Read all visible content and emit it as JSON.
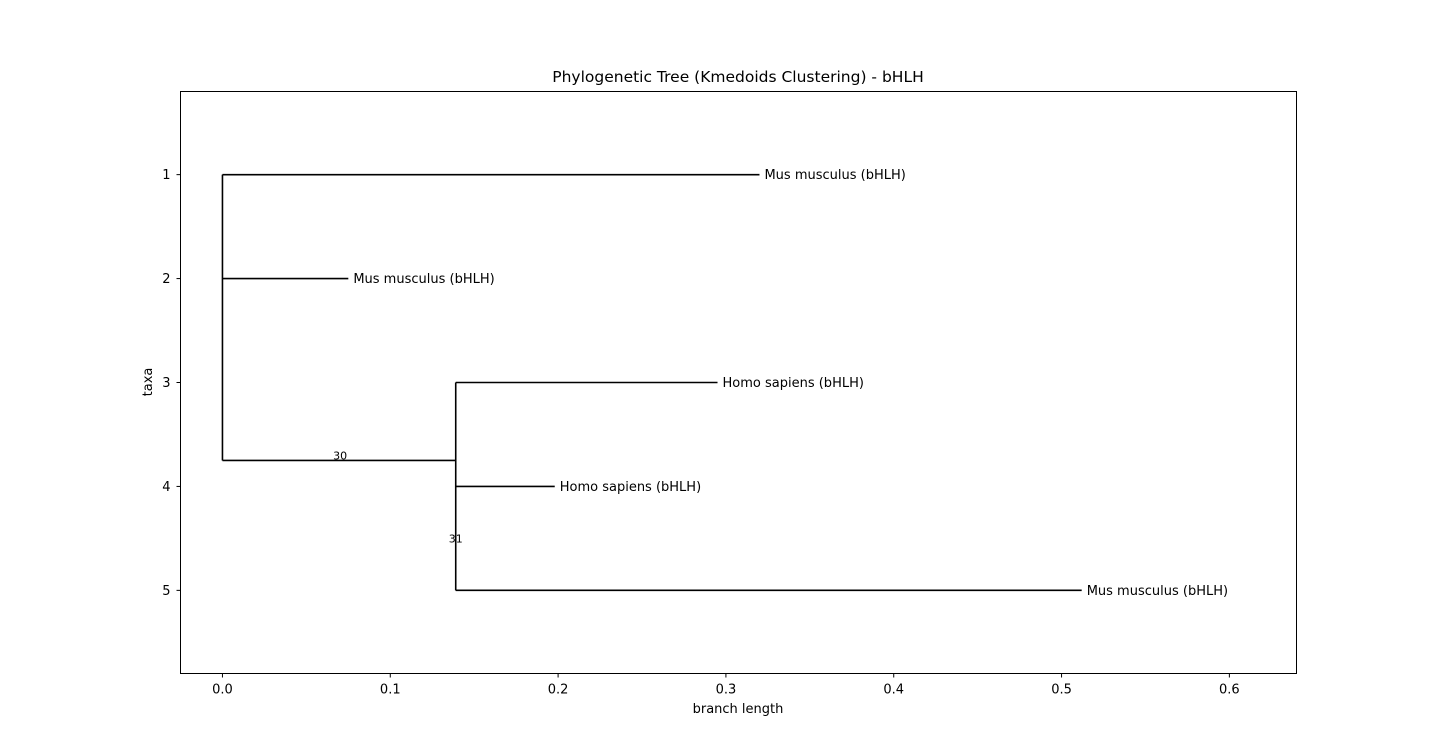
{
  "chart_data": {
    "type": "tree",
    "title": "Phylogenetic Tree (Kmedoids Clustering) - bHLH",
    "xlabel": "branch length",
    "ylabel": "taxa",
    "xlim": [
      -0.025,
      0.64
    ],
    "ylim": [
      5.8,
      0.2
    ],
    "x_ticks": [
      0.0,
      0.1,
      0.2,
      0.3,
      0.4,
      0.5,
      0.6
    ],
    "x_tick_labels": [
      "0.0",
      "0.1",
      "0.2",
      "0.3",
      "0.4",
      "0.5",
      "0.6"
    ],
    "y_ticks": [
      1,
      2,
      3,
      4,
      5
    ],
    "y_tick_labels": [
      "1",
      "2",
      "3",
      "4",
      "5"
    ],
    "leaves": [
      {
        "label": "Mus musculus (bHLH)",
        "y": 1,
        "x": 0.32
      },
      {
        "label": "Mus musculus (bHLH)",
        "y": 2,
        "x": 0.075
      },
      {
        "label": "Homo sapiens (bHLH)",
        "y": 3,
        "x": 0.295
      },
      {
        "label": "Homo sapiens (bHLH)",
        "y": 4,
        "x": 0.198
      },
      {
        "label": "Mus musculus (bHLH)",
        "y": 5,
        "x": 0.512
      }
    ],
    "internal_nodes": [
      {
        "label": "",
        "x": 0.0,
        "y_top": 1,
        "y_bottom": 3.75
      },
      {
        "label": "30",
        "x": 0.139,
        "y_top": 3,
        "y_bottom": 5,
        "parent_x": 0.0,
        "y": 3.75
      },
      {
        "label": "31",
        "x": 0.139
      }
    ],
    "grid": false,
    "line_color": "#000000"
  }
}
